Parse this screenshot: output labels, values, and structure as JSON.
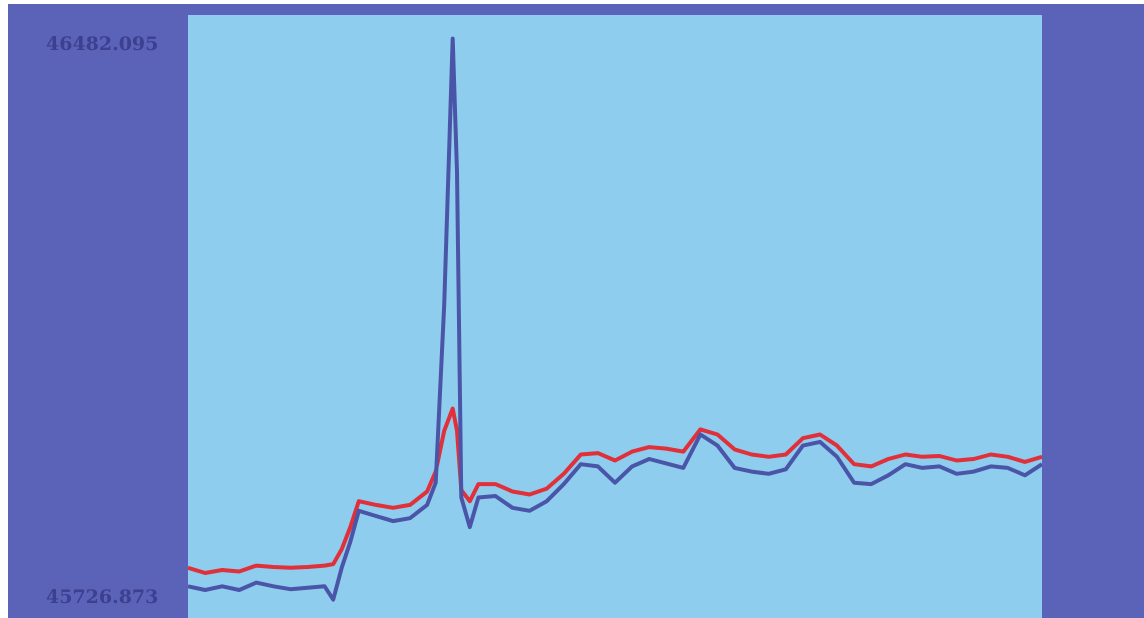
{
  "chart_data": {
    "type": "line",
    "title": "",
    "xlabel": "",
    "ylabel": "",
    "y_tick_labels": {
      "top": "46482.095",
      "bottom": "45726.873"
    },
    "ylim": [
      45726.873,
      46482.095
    ],
    "grid": false,
    "colors": {
      "background": "#5b63b8",
      "plot_area": "#8fcdee",
      "series_blue": "#4a55a8",
      "series_red": "#e0303a",
      "label": "#3d3f8f"
    },
    "series": [
      {
        "color": "#4a55a8",
        "x": [
          0,
          2,
          4,
          6,
          8,
          10,
          12,
          14,
          16,
          17,
          18,
          19,
          20,
          22,
          24,
          26,
          28,
          29,
          30,
          31,
          31.5,
          32,
          33,
          34,
          36,
          38,
          40,
          42,
          44,
          46,
          48,
          50,
          52,
          54,
          56,
          58,
          60,
          62,
          64,
          66,
          68,
          70,
          72,
          74,
          76,
          78,
          80,
          82,
          84,
          86,
          88,
          90,
          92,
          94,
          96,
          98,
          100
        ],
        "y": [
          45740,
          45735,
          45740,
          45735,
          45745,
          45740,
          45736,
          45738,
          45740,
          45722,
          45765,
          45800,
          45842,
          45835,
          45828,
          45832,
          45850,
          45880,
          46120,
          46480,
          46300,
          45860,
          45820,
          45860,
          45862,
          45846,
          45842,
          45855,
          45878,
          45905,
          45902,
          45880,
          45902,
          45912,
          45906,
          45900,
          45945,
          45930,
          45900,
          45895,
          45892,
          45898,
          45930,
          45935,
          45915,
          45880,
          45878,
          45890,
          45905,
          45900,
          45902,
          45892,
          45895,
          45902,
          45900,
          45890,
          45905
        ]
      },
      {
        "color": "#e0303a",
        "x": [
          0,
          2,
          4,
          6,
          8,
          10,
          12,
          14,
          16,
          17,
          18,
          19,
          20,
          22,
          24,
          26,
          28,
          29,
          30,
          31,
          31.5,
          32,
          33,
          34,
          36,
          38,
          40,
          42,
          44,
          46,
          48,
          50,
          52,
          54,
          56,
          58,
          60,
          62,
          64,
          66,
          68,
          70,
          72,
          74,
          76,
          78,
          80,
          82,
          84,
          86,
          88,
          90,
          92,
          94,
          96,
          98,
          100
        ],
        "y": [
          45765,
          45758,
          45762,
          45760,
          45768,
          45766,
          45765,
          45766,
          45768,
          45770,
          45790,
          45820,
          45855,
          45850,
          45846,
          45850,
          45868,
          45895,
          45950,
          45980,
          45950,
          45870,
          45855,
          45878,
          45878,
          45868,
          45864,
          45872,
          45892,
          45918,
          45920,
          45910,
          45922,
          45928,
          45926,
          45922,
          45952,
          45945,
          45925,
          45918,
          45915,
          45918,
          45940,
          45945,
          45930,
          45905,
          45902,
          45912,
          45918,
          45915,
          45916,
          45910,
          45912,
          45918,
          45915,
          45908,
          45915
        ]
      }
    ]
  }
}
